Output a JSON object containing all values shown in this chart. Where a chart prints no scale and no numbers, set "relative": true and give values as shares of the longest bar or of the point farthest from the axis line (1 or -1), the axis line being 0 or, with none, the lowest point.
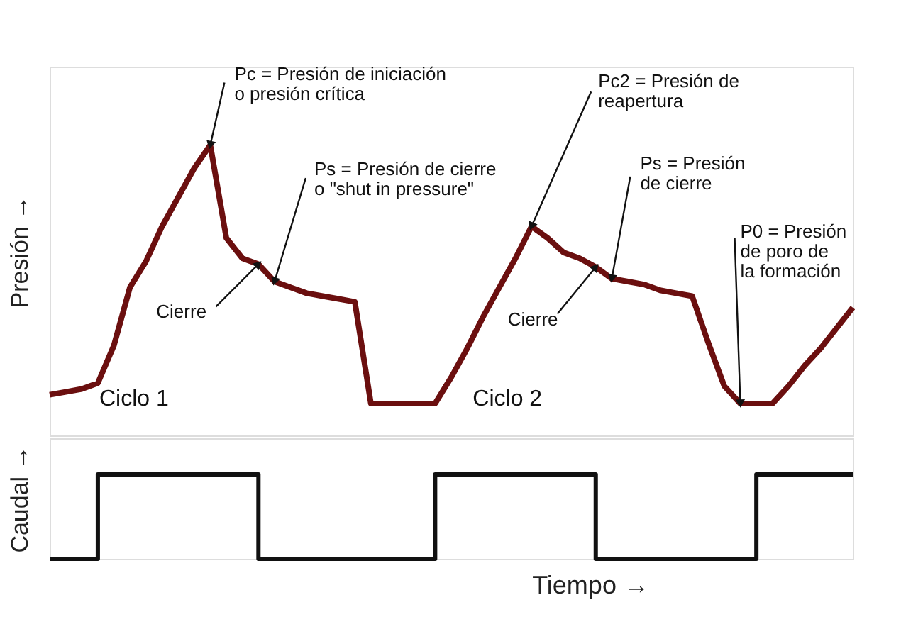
{
  "chart_data": [
    {
      "type": "line",
      "ylabel": "Presión →",
      "relative": true,
      "tick_labels": false,
      "categories": [
        null,
        null,
        null,
        null,
        null,
        null,
        null,
        null,
        null,
        null,
        null,
        null,
        null,
        null,
        null,
        null,
        null,
        null,
        null,
        null,
        null,
        null,
        null,
        null,
        null,
        null,
        null,
        null,
        null,
        null,
        null,
        null,
        null,
        null,
        null,
        null,
        null,
        null,
        null,
        null,
        null,
        null,
        null,
        null,
        null,
        null,
        null,
        null,
        null,
        null,
        null
      ],
      "series": [
        {
          "color": "#6b0f0f",
          "values": [
            0.14,
            0.15,
            0.16,
            0.18,
            0.31,
            0.51,
            0.6,
            0.72,
            0.82,
            0.92,
            1.0,
            0.68,
            0.61,
            0.59,
            0.53,
            0.51,
            0.49,
            0.48,
            0.47,
            0.46,
            0.11,
            0.11,
            0.11,
            0.11,
            0.11,
            0.2,
            0.3,
            0.41,
            0.51,
            0.61,
            0.72,
            0.68,
            0.63,
            0.61,
            0.58,
            0.54,
            0.53,
            0.52,
            0.5,
            0.49,
            0.48,
            0.32,
            0.17,
            0.11,
            0.11,
            0.11,
            0.17,
            0.24,
            0.3,
            0.37,
            0.44
          ]
        }
      ],
      "annotations": [
        "Pc = Presión de iniciación\no presión crítica",
        "Ps = Presión de cierre\no \"shut in pressure\"",
        "Cierre",
        "Pc2 = Presión de\nreapertura",
        "Ps = Presión\nde cierre",
        "Cierre",
        "P0 = Presión\nde poro de\nla formación",
        "Ciclo 1",
        "Ciclo 2"
      ]
    },
    {
      "type": "step",
      "ylabel": "Caudal →",
      "xlabel": "Tiempo →",
      "relative": true,
      "tick_labels": false,
      "categories": [
        null,
        null,
        null,
        null,
        null,
        null,
        null,
        null,
        null,
        null,
        null,
        null,
        null,
        null,
        null,
        null,
        null,
        null,
        null,
        null,
        null,
        null,
        null,
        null,
        null,
        null,
        null,
        null,
        null,
        null,
        null,
        null,
        null,
        null,
        null,
        null,
        null,
        null,
        null,
        null,
        null,
        null,
        null,
        null,
        null,
        null,
        null,
        null,
        null,
        null,
        null
      ],
      "series": [
        {
          "color": "#111111",
          "values": [
            0,
            0,
            0,
            1,
            1,
            1,
            1,
            1,
            1,
            1,
            1,
            1,
            1,
            0,
            0,
            0,
            0,
            0,
            0,
            0,
            0,
            0,
            0,
            0,
            1,
            1,
            1,
            1,
            1,
            1,
            1,
            1,
            1,
            1,
            0,
            0,
            0,
            0,
            0,
            0,
            0,
            0,
            0,
            0,
            1,
            1,
            1,
            1,
            1,
            1,
            1
          ]
        }
      ]
    }
  ]
}
